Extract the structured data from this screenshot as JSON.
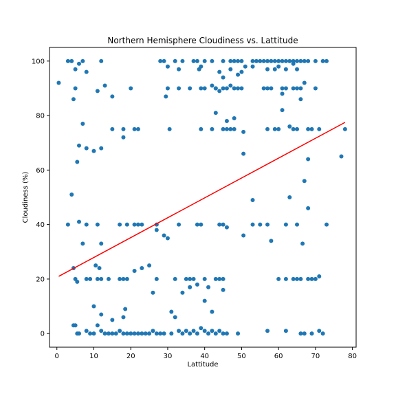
{
  "chart_data": {
    "type": "scatter",
    "title": "Northern Hemisphere Cloudiness vs. Lattitude",
    "xlabel": "Lattitude",
    "ylabel": "Cloudiness (%)",
    "xlim": [
      -2,
      81
    ],
    "ylim": [
      -5,
      105
    ],
    "xticks": [
      0,
      10,
      20,
      30,
      40,
      50,
      60,
      70,
      80
    ],
    "yticks": [
      0,
      20,
      40,
      60,
      80,
      100
    ],
    "grid": false,
    "colors": {
      "points": "#1f77b4",
      "regression": "#ff0000"
    },
    "regression": {
      "x": [
        0.5,
        78.0
      ],
      "y": [
        21.0,
        77.5
      ]
    },
    "series": [
      {
        "points": [
          [
            0.5,
            92
          ],
          [
            3,
            100
          ],
          [
            4,
            100
          ],
          [
            5,
            97
          ],
          [
            6,
            99
          ],
          [
            7,
            100
          ],
          [
            8,
            96
          ],
          [
            4.5,
            86
          ],
          [
            5,
            90
          ],
          [
            11,
            89
          ],
          [
            13,
            91
          ],
          [
            15,
            87
          ],
          [
            12,
            100
          ],
          [
            7,
            77
          ],
          [
            6,
            69
          ],
          [
            8,
            68
          ],
          [
            10,
            67
          ],
          [
            12,
            68
          ],
          [
            5.5,
            63
          ],
          [
            4,
            51
          ],
          [
            15,
            75
          ],
          [
            18,
            75
          ],
          [
            21,
            75
          ],
          [
            22,
            75
          ],
          [
            18,
            72
          ],
          [
            20,
            90
          ],
          [
            3,
            40
          ],
          [
            6,
            41
          ],
          [
            8,
            40
          ],
          [
            11,
            40
          ],
          [
            17,
            40
          ],
          [
            19,
            40
          ],
          [
            21,
            40
          ],
          [
            22,
            40
          ],
          [
            23,
            40
          ],
          [
            7,
            33
          ],
          [
            12,
            33
          ],
          [
            4.5,
            24
          ],
          [
            5,
            20
          ],
          [
            5.5,
            19
          ],
          [
            8,
            20
          ],
          [
            9,
            20
          ],
          [
            11,
            20
          ],
          [
            12,
            20
          ],
          [
            14,
            20
          ],
          [
            17,
            20
          ],
          [
            18,
            20
          ],
          [
            19,
            20
          ],
          [
            10.5,
            25
          ],
          [
            11.5,
            24
          ],
          [
            21,
            23
          ],
          [
            23,
            24
          ],
          [
            25,
            25
          ],
          [
            27,
            20
          ],
          [
            26,
            15
          ],
          [
            10,
            10
          ],
          [
            12,
            7
          ],
          [
            15,
            5
          ],
          [
            18,
            6
          ],
          [
            18.5,
            9
          ],
          [
            4.5,
            3
          ],
          [
            5,
            3
          ],
          [
            11,
            3
          ],
          [
            5.5,
            0
          ],
          [
            6,
            0
          ],
          [
            8,
            1
          ],
          [
            9,
            0
          ],
          [
            10,
            0
          ],
          [
            12,
            1
          ],
          [
            13,
            0
          ],
          [
            14,
            0
          ],
          [
            15,
            0
          ],
          [
            16,
            0
          ],
          [
            17,
            1
          ],
          [
            18,
            0
          ],
          [
            19,
            0
          ],
          [
            20,
            0
          ],
          [
            21,
            0
          ],
          [
            22,
            0
          ],
          [
            23,
            0
          ],
          [
            24,
            0
          ],
          [
            25,
            0
          ],
          [
            26,
            1
          ],
          [
            27,
            0
          ],
          [
            28,
            0
          ],
          [
            29,
            0
          ],
          [
            28,
            100
          ],
          [
            29,
            100
          ],
          [
            32,
            100
          ],
          [
            34,
            100
          ],
          [
            30,
            98
          ],
          [
            33,
            97
          ],
          [
            29.5,
            87
          ],
          [
            30,
            90
          ],
          [
            33,
            90
          ],
          [
            30.5,
            75
          ],
          [
            37,
            100
          ],
          [
            38,
            100
          ],
          [
            40,
            100
          ],
          [
            42,
            100
          ],
          [
            39,
            98
          ],
          [
            38.5,
            97
          ],
          [
            36,
            90
          ],
          [
            39,
            90
          ],
          [
            40,
            90
          ],
          [
            43,
            90
          ],
          [
            44,
            89
          ],
          [
            39,
            75
          ],
          [
            42,
            75
          ],
          [
            45,
            100
          ],
          [
            47,
            100
          ],
          [
            48,
            100
          ],
          [
            49,
            100
          ],
          [
            50,
            100
          ],
          [
            44,
            96
          ],
          [
            45,
            94
          ],
          [
            47,
            97
          ],
          [
            49,
            95
          ],
          [
            50,
            96
          ],
          [
            51,
            98
          ],
          [
            42,
            91
          ],
          [
            43,
            90
          ],
          [
            45,
            90
          ],
          [
            46,
            90
          ],
          [
            47,
            91
          ],
          [
            48,
            90
          ],
          [
            49,
            90
          ],
          [
            50,
            90
          ],
          [
            43,
            81
          ],
          [
            46,
            78
          ],
          [
            48,
            79
          ],
          [
            45,
            75
          ],
          [
            46,
            75
          ],
          [
            47,
            75
          ],
          [
            48,
            75
          ],
          [
            50.5,
            74
          ],
          [
            50.5,
            66
          ],
          [
            53,
            100
          ],
          [
            54,
            100
          ],
          [
            55,
            100
          ],
          [
            56,
            100
          ],
          [
            57,
            100
          ],
          [
            58,
            100
          ],
          [
            59,
            100
          ],
          [
            60,
            100
          ],
          [
            61,
            100
          ],
          [
            62,
            100
          ],
          [
            63,
            100
          ],
          [
            64,
            100
          ],
          [
            65,
            100
          ],
          [
            66,
            100
          ],
          [
            67,
            100
          ],
          [
            68,
            100
          ],
          [
            70,
            100
          ],
          [
            72,
            100
          ],
          [
            73,
            100
          ],
          [
            53,
            98
          ],
          [
            57,
            97
          ],
          [
            59,
            97
          ],
          [
            60,
            98
          ],
          [
            62,
            97
          ],
          [
            64,
            99
          ],
          [
            65,
            97
          ],
          [
            56,
            90
          ],
          [
            57,
            90
          ],
          [
            58,
            90
          ],
          [
            61,
            90
          ],
          [
            62,
            90
          ],
          [
            64,
            90
          ],
          [
            65,
            90
          ],
          [
            66,
            90
          ],
          [
            70,
            90
          ],
          [
            61,
            88
          ],
          [
            67,
            92
          ],
          [
            61,
            82
          ],
          [
            63,
            76
          ],
          [
            64,
            75
          ],
          [
            65,
            75
          ],
          [
            57,
            75
          ],
          [
            59,
            75
          ],
          [
            60,
            75
          ],
          [
            68,
            75
          ],
          [
            69,
            75
          ],
          [
            71,
            75
          ],
          [
            66,
            86
          ],
          [
            77,
            65
          ],
          [
            78,
            75
          ],
          [
            68,
            64
          ],
          [
            67,
            56
          ],
          [
            53,
            49
          ],
          [
            63,
            50
          ],
          [
            68,
            46
          ],
          [
            66.5,
            33
          ],
          [
            73,
            40
          ],
          [
            27,
            40
          ],
          [
            27,
            38
          ],
          [
            29,
            36
          ],
          [
            30,
            35
          ],
          [
            33,
            40
          ],
          [
            38,
            40
          ],
          [
            39,
            40
          ],
          [
            44,
            40
          ],
          [
            45,
            40
          ],
          [
            46,
            39
          ],
          [
            50.5,
            36
          ],
          [
            53,
            40
          ],
          [
            55,
            40
          ],
          [
            57,
            40
          ],
          [
            58,
            34
          ],
          [
            62,
            40
          ],
          [
            65,
            40
          ],
          [
            32,
            20
          ],
          [
            35,
            20
          ],
          [
            36,
            20
          ],
          [
            37,
            20
          ],
          [
            38,
            18
          ],
          [
            40,
            20
          ],
          [
            41,
            17
          ],
          [
            43,
            20
          ],
          [
            44,
            20
          ],
          [
            45,
            20
          ],
          [
            36,
            17
          ],
          [
            34,
            15
          ],
          [
            45,
            16
          ],
          [
            40,
            12
          ],
          [
            42,
            8
          ],
          [
            31,
            8
          ],
          [
            32,
            6
          ],
          [
            60,
            20
          ],
          [
            62,
            20
          ],
          [
            64,
            20
          ],
          [
            65,
            20
          ],
          [
            66,
            20
          ],
          [
            68,
            20
          ],
          [
            69,
            20
          ],
          [
            70,
            20
          ],
          [
            71,
            21
          ],
          [
            31,
            0
          ],
          [
            33,
            1
          ],
          [
            34,
            0
          ],
          [
            35,
            1
          ],
          [
            36,
            0
          ],
          [
            37,
            1
          ],
          [
            38,
            0
          ],
          [
            39,
            2
          ],
          [
            40,
            1
          ],
          [
            41,
            0
          ],
          [
            42,
            1
          ],
          [
            43,
            0
          ],
          [
            44,
            1
          ],
          [
            45,
            0
          ],
          [
            46,
            0
          ],
          [
            49,
            0
          ],
          [
            57,
            1
          ],
          [
            62,
            1
          ],
          [
            66,
            0
          ],
          [
            67,
            0
          ],
          [
            69,
            0
          ],
          [
            71,
            1
          ],
          [
            72,
            0
          ]
        ]
      }
    ]
  }
}
